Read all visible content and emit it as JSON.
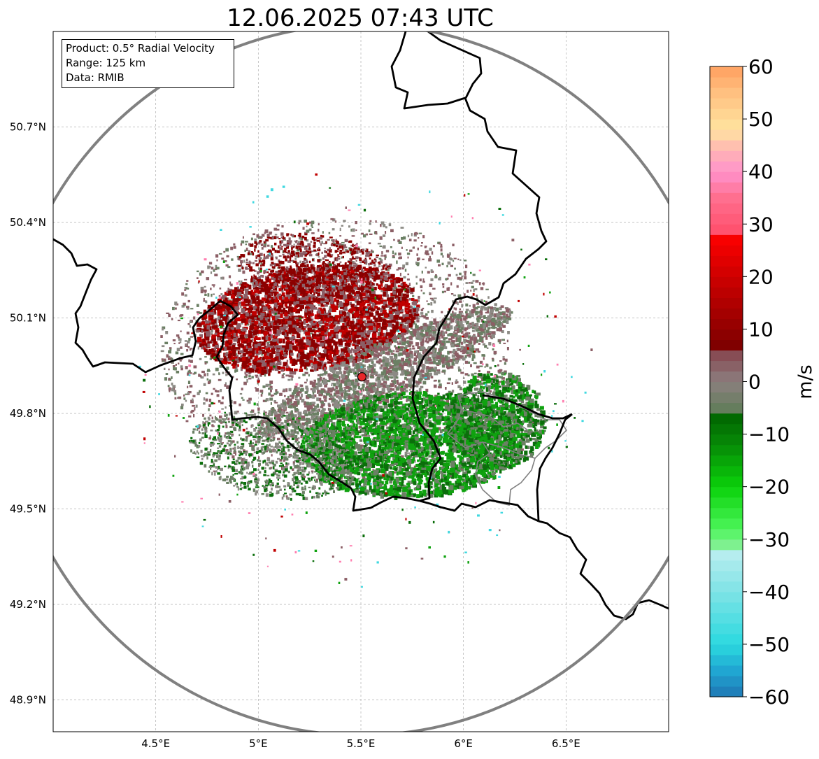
{
  "title": "12.06.2025 07:43 UTC",
  "info_box": {
    "product": "Product: 0.5° Radial Velocity",
    "range": "Range: 125 km",
    "source": "Data: RMIB"
  },
  "map": {
    "lon_range": [
      4.0,
      7.0
    ],
    "lat_range": [
      48.8,
      51.0
    ],
    "lat_ticks": [
      {
        "value": 50.7,
        "label": "50.7°N"
      },
      {
        "value": 50.4,
        "label": "50.4°N"
      },
      {
        "value": 50.1,
        "label": "50.1°N"
      },
      {
        "value": 49.8,
        "label": "49.8°N"
      },
      {
        "value": 49.5,
        "label": "49.5°N"
      },
      {
        "value": 49.2,
        "label": "49.2°N"
      },
      {
        "value": 48.9,
        "label": "48.9°N"
      }
    ],
    "lon_ticks": [
      {
        "value": 4.5,
        "label": "4.5°E"
      },
      {
        "value": 5.0,
        "label": "5°E"
      },
      {
        "value": 5.5,
        "label": "5.5°E"
      },
      {
        "value": 6.0,
        "label": "6°E"
      },
      {
        "value": 6.5,
        "label": "6.5°E"
      }
    ],
    "radar_site": {
      "lon": 5.505,
      "lat": 49.915,
      "color": "#e8262a"
    },
    "range_ring_km": 125
  },
  "colorbar": {
    "label": "m/s",
    "min": -60,
    "max": 60,
    "ticks": [
      {
        "value": 60,
        "label": "60"
      },
      {
        "value": 50,
        "label": "50"
      },
      {
        "value": 40,
        "label": "40"
      },
      {
        "value": 30,
        "label": "30"
      },
      {
        "value": 20,
        "label": "20"
      },
      {
        "value": 10,
        "label": "10"
      },
      {
        "value": 0,
        "label": "0"
      },
      {
        "value": -10,
        "label": "−10"
      },
      {
        "value": -20,
        "label": "−20"
      },
      {
        "value": -30,
        "label": "−30"
      },
      {
        "value": -40,
        "label": "−40"
      },
      {
        "value": -50,
        "label": "−50"
      },
      {
        "value": -60,
        "label": "−60"
      }
    ],
    "color_stops": [
      {
        "v": -60,
        "c": "#1f77b4"
      },
      {
        "v": -55,
        "c": "#20a6d2"
      },
      {
        "v": -50,
        "c": "#2bd9df"
      },
      {
        "v": -40,
        "c": "#7ee3e6"
      },
      {
        "v": -32,
        "c": "#bdeef0"
      },
      {
        "v": -32,
        "c": "#8ef0a0"
      },
      {
        "v": -28,
        "c": "#4cf55a"
      },
      {
        "v": -20,
        "c": "#0ad10a"
      },
      {
        "v": -12,
        "c": "#078a07"
      },
      {
        "v": -6,
        "c": "#006400"
      },
      {
        "v": -6,
        "c": "#5d7d56"
      },
      {
        "v": 0,
        "c": "#8c7f7f"
      },
      {
        "v": 5,
        "c": "#874d55"
      },
      {
        "v": 6,
        "c": "#7a0000"
      },
      {
        "v": 15,
        "c": "#b00000"
      },
      {
        "v": 27,
        "c": "#f80000"
      },
      {
        "v": 28,
        "c": "#ff4d6a"
      },
      {
        "v": 35,
        "c": "#ff6f8f"
      },
      {
        "v": 40,
        "c": "#ff92cc"
      },
      {
        "v": 44,
        "c": "#ffb4b4"
      },
      {
        "v": 48,
        "c": "#ffe4a0"
      },
      {
        "v": 55,
        "c": "#ffc080"
      },
      {
        "v": 60,
        "c": "#ffa060"
      }
    ]
  },
  "echo_colors": {
    "dark_red": "#8b0000",
    "red": "#c00000",
    "mauve": "#8c5f66",
    "grey": "#8c8a84",
    "grey_green": "#6b8064",
    "dark_green": "#0b6e0b",
    "green": "#0fa20f",
    "pink": "#ff7fb0",
    "cyan": "#40d8e0"
  }
}
